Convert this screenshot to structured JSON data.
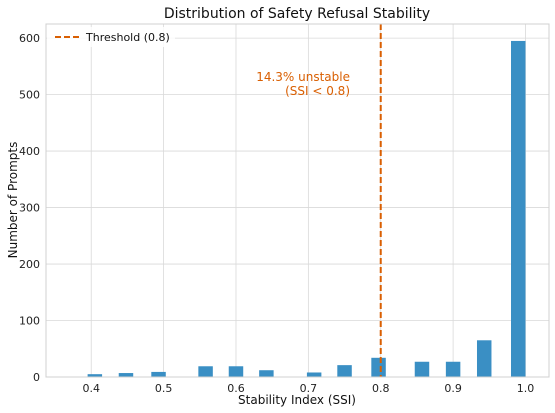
{
  "chart_data": {
    "type": "bar",
    "title": "Distribution of Safety Refusal Stability",
    "xlabel": "Stability Index (SSI)",
    "ylabel": "Number of Prompts",
    "xlim": [
      0.3375,
      1.0325
    ],
    "ylim": [
      0,
      625
    ],
    "xticks": [
      "0.4",
      "0.5",
      "0.6",
      "0.7",
      "0.8",
      "0.9",
      "1.0"
    ],
    "yticks": [
      "0",
      "100",
      "200",
      "300",
      "400",
      "500",
      "600"
    ],
    "grid": true,
    "bar_color": "#3a8fc4",
    "bin_width": 0.02,
    "bins": [
      {
        "x": 0.405,
        "value": 5
      },
      {
        "x": 0.448,
        "value": 7
      },
      {
        "x": 0.493,
        "value": 9
      },
      {
        "x": 0.558,
        "value": 19
      },
      {
        "x": 0.6,
        "value": 19
      },
      {
        "x": 0.642,
        "value": 12
      },
      {
        "x": 0.708,
        "value": 8
      },
      {
        "x": 0.75,
        "value": 21
      },
      {
        "x": 0.797,
        "value": 34
      },
      {
        "x": 0.857,
        "value": 27
      },
      {
        "x": 0.9,
        "value": 27
      },
      {
        "x": 0.943,
        "value": 65
      },
      {
        "x": 0.99,
        "value": 595
      }
    ],
    "threshold": {
      "x": 0.8,
      "label": "Threshold (0.8)",
      "color": "#d95f02"
    },
    "annotation": {
      "line1": "14.3% unstable",
      "line2": "(SSI < 0.8)",
      "color": "#d95f02"
    },
    "legend_position": "top-left"
  }
}
